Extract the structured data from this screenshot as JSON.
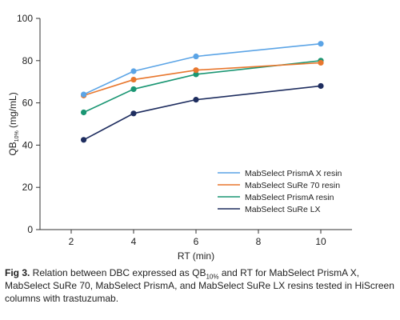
{
  "chart_data": {
    "type": "line",
    "xlabel": "RT (min)",
    "ylabel": {
      "main": "QB",
      "sub": "10%",
      "tail": " (mg/mL)"
    },
    "xlim": [
      1,
      11
    ],
    "ylim": [
      0,
      100
    ],
    "x_ticks": [
      2,
      4,
      6,
      8,
      10
    ],
    "y_ticks": [
      0,
      20,
      40,
      60,
      80,
      100
    ],
    "grid": false,
    "legend_position": "right, lower",
    "x": [
      2.4,
      4,
      6,
      10
    ],
    "series": [
      {
        "name": "MabSelect PrismA X resin",
        "color": "#5ba4e6",
        "values": [
          64,
          75,
          82,
          88
        ]
      },
      {
        "name": "MabSelect SuRe 70 resin",
        "color": "#e8772e",
        "values": [
          63.5,
          71,
          75.5,
          79
        ]
      },
      {
        "name": "MabSelect PrismA resin",
        "color": "#1a9673",
        "values": [
          55.5,
          66.5,
          73.5,
          80
        ]
      },
      {
        "name": "MabSelect SuRe LX",
        "color": "#1e2d5f",
        "values": [
          42.5,
          55,
          61.5,
          68
        ]
      }
    ]
  },
  "caption": {
    "label": "Fig 3.",
    "text_before": " Relation between DBC expressed as QB",
    "subscript": "10%",
    "text_after": " and RT for MabSelect PrismA X, MabSelect SuRe 70, MabSelect PrismA, and MabSelect SuRe LX resins tested in HiScreen columns with trastuzumab."
  }
}
